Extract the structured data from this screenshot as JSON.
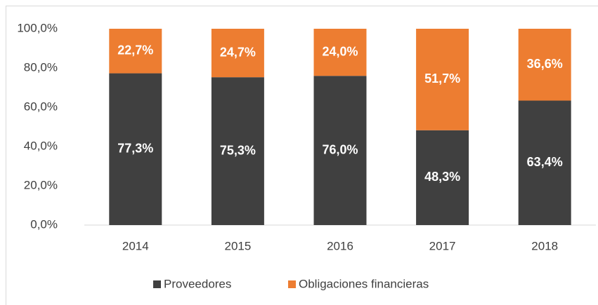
{
  "chart_data": {
    "type": "stacked_bar",
    "categories": [
      "2014",
      "2015",
      "2016",
      "2017",
      "2018"
    ],
    "series": [
      {
        "name": "Proveedores",
        "color": "#404040",
        "values": [
          77.3,
          75.3,
          76.0,
          48.3,
          63.4
        ],
        "value_labels": [
          "77,3%",
          "75,3%",
          "76,0%",
          "48,3%",
          "63,4%"
        ]
      },
      {
        "name": "Obligaciones financieras",
        "color": "#ed7d31",
        "values": [
          22.7,
          24.7,
          24.0,
          51.7,
          36.6
        ],
        "value_labels": [
          "22,7%",
          "24,7%",
          "24,0%",
          "51,7%",
          "36,6%"
        ]
      }
    ],
    "ylim": [
      0,
      100
    ],
    "yticks": [
      {
        "value": 0,
        "label": "0,0%"
      },
      {
        "value": 20,
        "label": "20,0%"
      },
      {
        "value": 40,
        "label": "40,0%"
      },
      {
        "value": 60,
        "label": "60,0%"
      },
      {
        "value": 80,
        "label": "80,0%"
      },
      {
        "value": 100,
        "label": "100,0%"
      }
    ],
    "legend": "bottom"
  }
}
